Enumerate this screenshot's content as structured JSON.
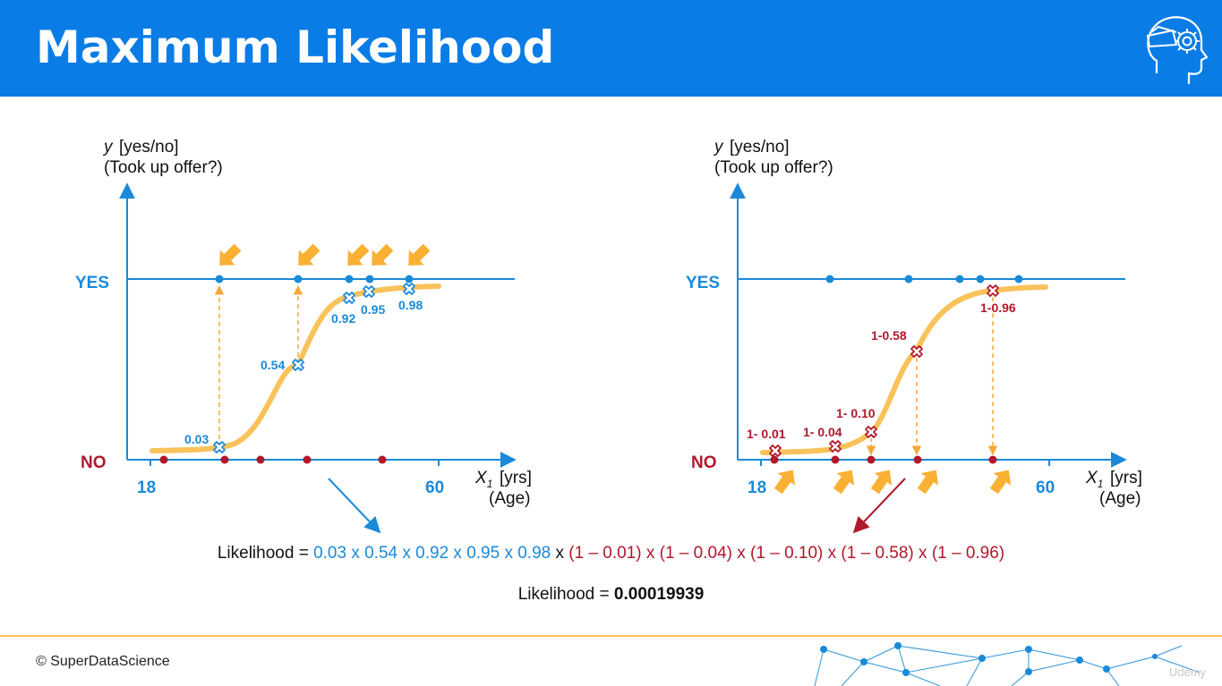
{
  "title": "Maximum Likelihood",
  "colors": {
    "brand_blue": "#0a7ce6",
    "point_blue": "#1a8ad8",
    "point_red": "#b0182b",
    "curve": "#f9c25a",
    "arrow": "#f4a93a"
  },
  "left_chart": {
    "ylabel_var": "y",
    "ylabel_units": "[yes/no]",
    "ylabel_question": "(Took up offer?)",
    "yes_label": "YES",
    "no_label": "NO",
    "x_min_label": "18",
    "x_max_label": "60",
    "xlabel_var": "X",
    "xlabel_sub": "1",
    "xlabel_units": "[yrs]",
    "xlabel_desc": "(Age)",
    "prob_labels": [
      "0.03",
      "0.54",
      "0.92",
      "0.95",
      "0.98"
    ]
  },
  "right_chart": {
    "ylabel_var": "y",
    "ylabel_units": "[yes/no]",
    "ylabel_question": "(Took up offer?)",
    "yes_label": "YES",
    "no_label": "NO",
    "x_min_label": "18",
    "x_max_label": "60",
    "xlabel_var": "X",
    "xlabel_sub": "1",
    "xlabel_units": "[yrs]",
    "xlabel_desc": "(Age)",
    "prob_labels": [
      "1- 0.01",
      "1- 0.04",
      "1- 0.10",
      "1-0.58",
      "1-0.96"
    ]
  },
  "equation1": {
    "prefix": "Likelihood = ",
    "blue_part": "0.03 x 0.54 x 0.92 x 0.95 x 0.98",
    "joiner": " x ",
    "red_part": "(1 – 0.01) x (1 – 0.04) x (1 – 0.10) x (1 – 0.58) x (1 – 0.96)"
  },
  "equation2": {
    "prefix": "Likelihood = ",
    "value": "0.00019939"
  },
  "footer": {
    "copyright": "© SuperDataScience",
    "watermark": "Udemy"
  }
}
